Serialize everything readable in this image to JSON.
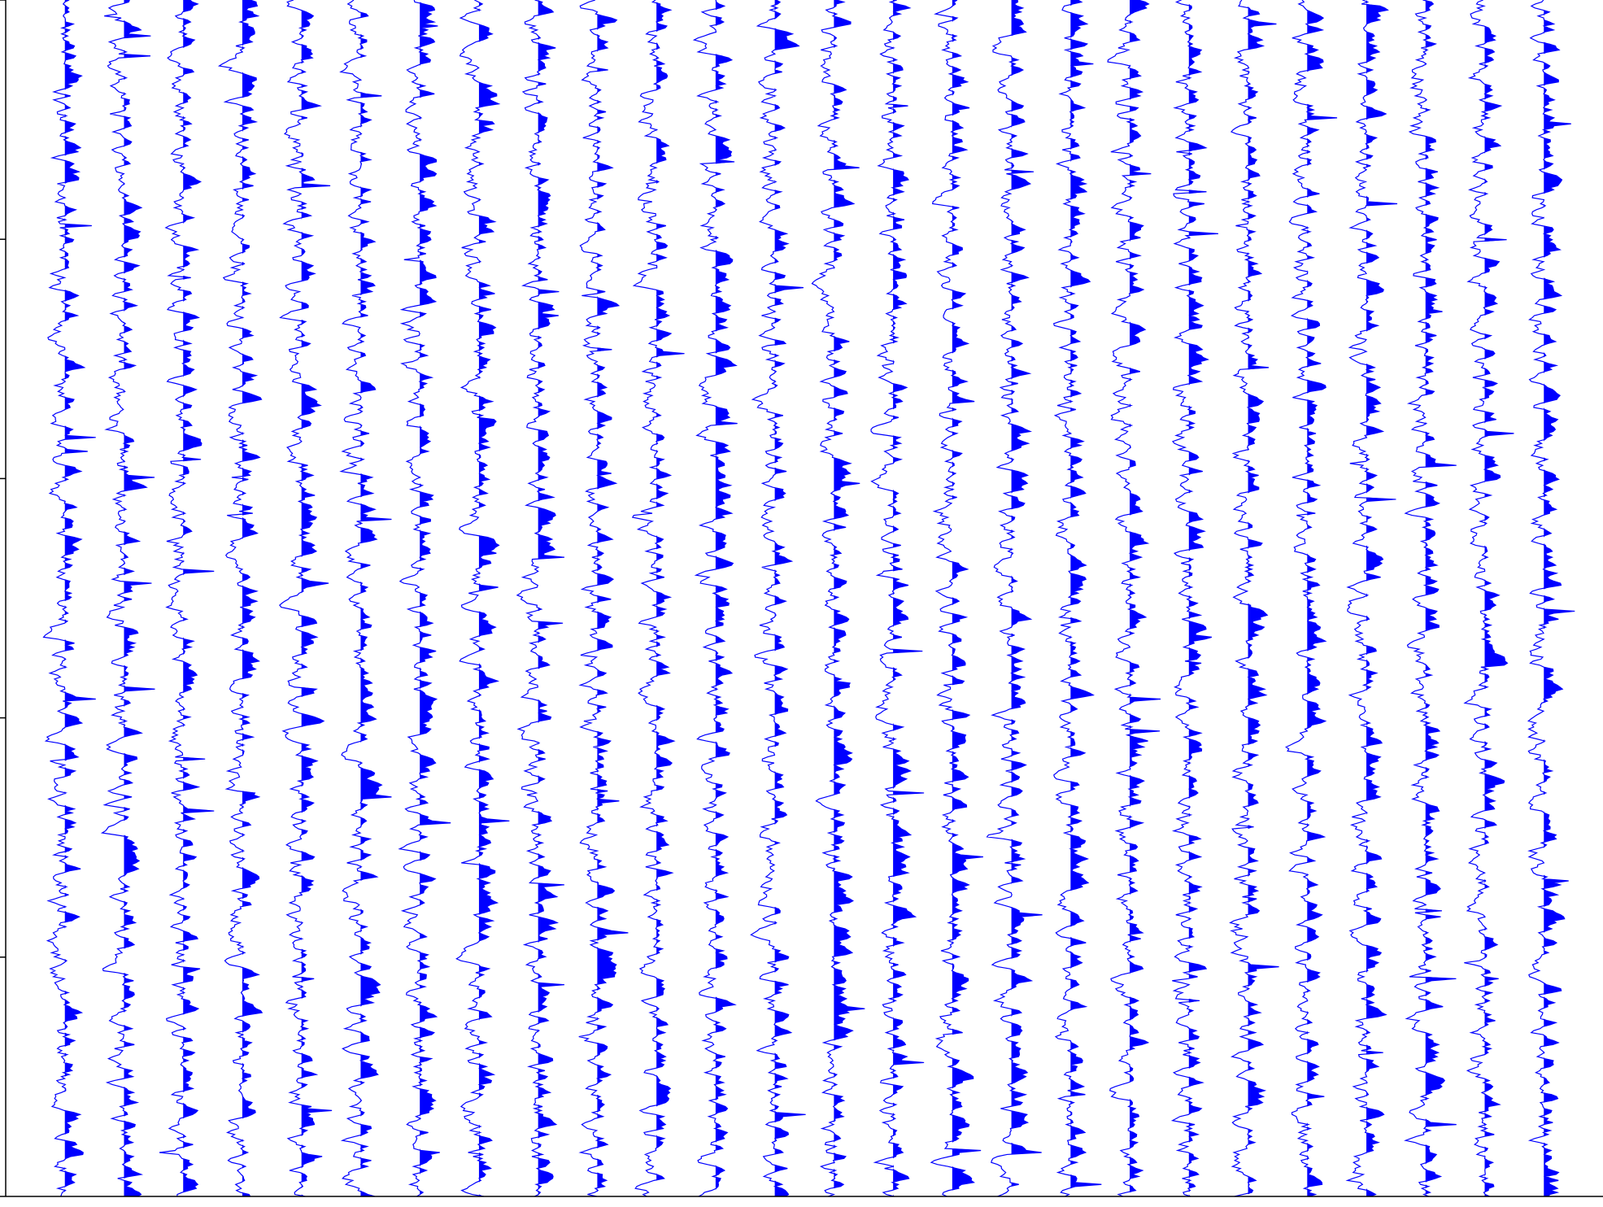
{
  "chart_data": {
    "type": "line",
    "title": "",
    "xlabel": "",
    "ylabel": "",
    "trace_count": 26,
    "samples_per_trace": 600,
    "trace_offsets": [
      1,
      2,
      3,
      4,
      5,
      6,
      7,
      8,
      9,
      10,
      11,
      12,
      13,
      14,
      15,
      16,
      17,
      18,
      19,
      20,
      21,
      22,
      23,
      24,
      25,
      26
    ],
    "xlim": [
      0,
      27
    ],
    "ylim": [
      0,
      1
    ],
    "yticks": [
      0,
      0.2,
      0.4,
      0.6,
      0.8,
      1.0
    ],
    "grid": false,
    "series_color": "#0000ff",
    "fill_positive": true,
    "background": "#ffffff",
    "axis_color": "#000000"
  }
}
